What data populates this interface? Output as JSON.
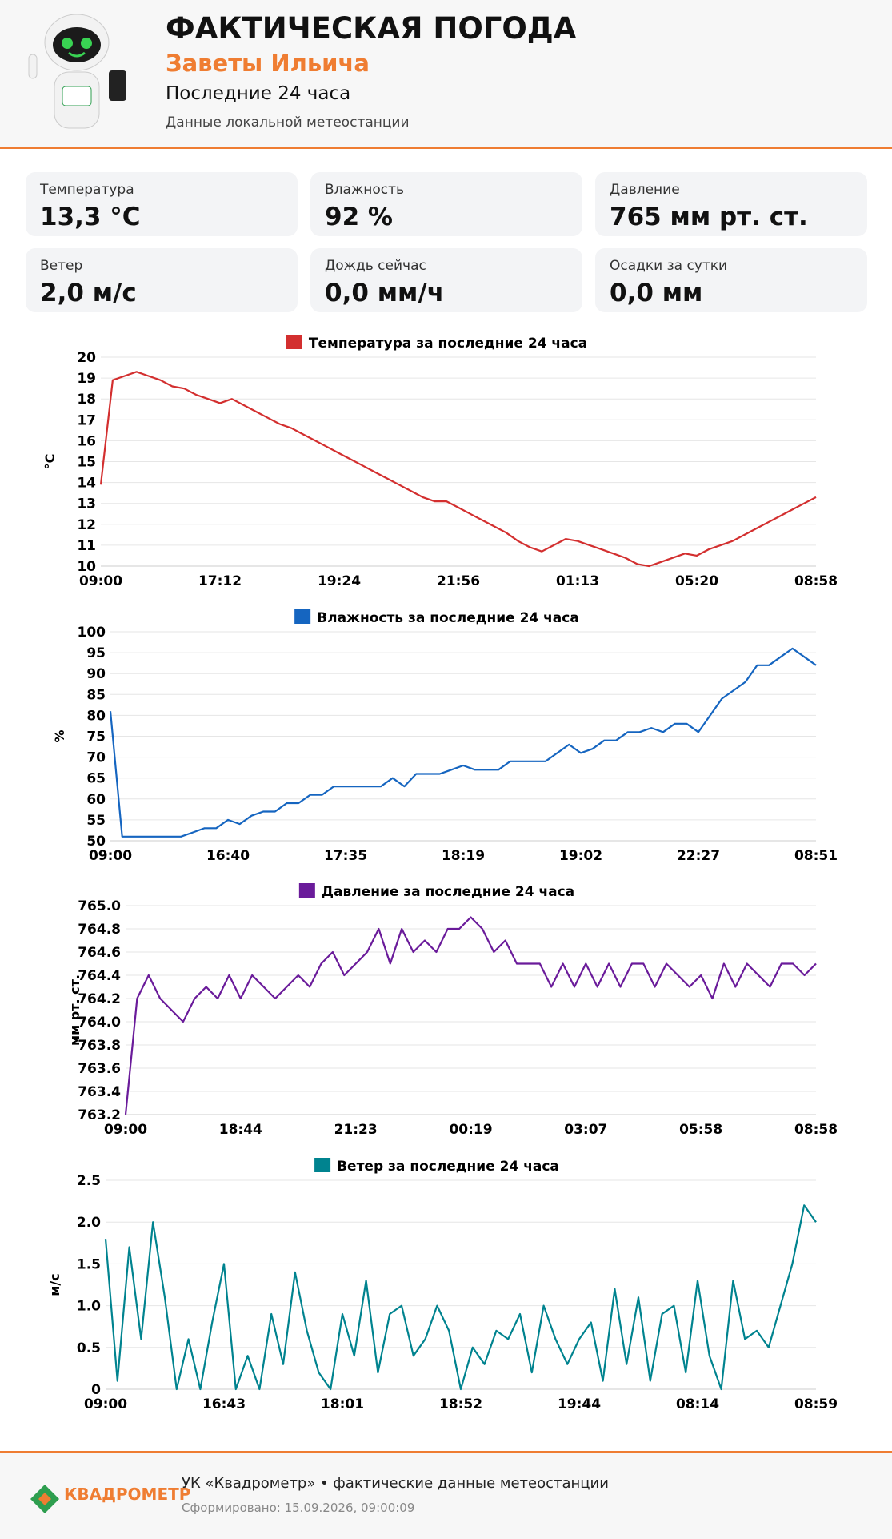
{
  "header": {
    "title": "ФАКТИЧЕСКАЯ ПОГОДА",
    "location": "Заветы Ильича",
    "period": "Последние 24 часа",
    "source": "Данные локальной метеостанции",
    "logo": "КВАДРОМЕТР"
  },
  "cards": [
    {
      "label": "Температура",
      "value": "13,3 °C"
    },
    {
      "label": "Влажность",
      "value": "92 %"
    },
    {
      "label": "Давление",
      "value": "765 мм рт. ст."
    },
    {
      "label": "Ветер",
      "value": "2,0 м/с"
    },
    {
      "label": "Дождь сейчас",
      "value": "0,0 мм/ч"
    },
    {
      "label": "Осадки за сутки",
      "value": "0,0 мм"
    }
  ],
  "chart_data": [
    {
      "type": "line",
      "ylabel": "°C",
      "grid": true,
      "ylim": [
        10,
        20
      ],
      "yticks": [
        10,
        11,
        12,
        13,
        14,
        15,
        16,
        17,
        18,
        19,
        20
      ],
      "categories": [
        "09:00",
        null,
        null,
        null,
        null,
        null,
        null,
        null,
        null,
        null,
        "17:12",
        null,
        null,
        null,
        null,
        null,
        null,
        null,
        null,
        null,
        "19:24",
        null,
        null,
        null,
        null,
        null,
        null,
        null,
        null,
        null,
        "21:56",
        null,
        null,
        null,
        null,
        null,
        null,
        null,
        null,
        null,
        "01:13",
        null,
        null,
        null,
        null,
        null,
        null,
        null,
        null,
        null,
        "05:20",
        null,
        null,
        null,
        null,
        null,
        null,
        null,
        null,
        null,
        "08:58"
      ],
      "series": [
        {
          "name": "Температура за последние 24 часа",
          "color": "#d32f2f",
          "values": [
            13.9,
            18.9,
            19.1,
            19.3,
            19.1,
            18.9,
            18.6,
            18.5,
            18.2,
            18.0,
            17.8,
            18.0,
            17.7,
            17.4,
            17.1,
            16.8,
            16.6,
            16.3,
            16.0,
            15.7,
            15.4,
            15.1,
            14.8,
            14.5,
            14.2,
            13.9,
            13.6,
            13.3,
            13.1,
            13.1,
            12.8,
            12.5,
            12.2,
            11.9,
            11.6,
            11.2,
            10.9,
            10.7,
            11.0,
            11.3,
            11.2,
            11.0,
            10.8,
            10.6,
            10.4,
            10.1,
            10.0,
            10.2,
            10.4,
            10.6,
            10.5,
            10.8,
            11.0,
            11.2,
            11.5,
            11.8,
            12.1,
            12.4,
            12.7,
            13.0,
            13.3
          ]
        }
      ]
    },
    {
      "type": "line",
      "ylabel": "%",
      "grid": true,
      "ylim": [
        50,
        100
      ],
      "yticks": [
        50,
        55,
        60,
        65,
        70,
        75,
        80,
        85,
        90,
        95,
        100
      ],
      "categories": [
        "09:00",
        null,
        null,
        null,
        null,
        null,
        null,
        null,
        null,
        null,
        "16:40",
        null,
        null,
        null,
        null,
        null,
        null,
        null,
        null,
        null,
        "17:35",
        null,
        null,
        null,
        null,
        null,
        null,
        null,
        null,
        null,
        "18:19",
        null,
        null,
        null,
        null,
        null,
        null,
        null,
        null,
        null,
        "19:02",
        null,
        null,
        null,
        null,
        null,
        null,
        null,
        null,
        null,
        "22:27",
        null,
        null,
        null,
        null,
        null,
        null,
        null,
        null,
        null,
        "08:51"
      ],
      "series": [
        {
          "name": "Влажность за последние 24 часа",
          "color": "#1565c0",
          "values": [
            81,
            51,
            51,
            51,
            51,
            51,
            51,
            52,
            53,
            53,
            55,
            54,
            56,
            57,
            57,
            59,
            59,
            61,
            61,
            63,
            63,
            63,
            63,
            63,
            65,
            63,
            66,
            66,
            66,
            67,
            68,
            67,
            67,
            67,
            69,
            69,
            69,
            69,
            71,
            73,
            71,
            72,
            74,
            74,
            76,
            76,
            77,
            76,
            78,
            78,
            76,
            80,
            84,
            86,
            88,
            92,
            92,
            94,
            96,
            94,
            92
          ]
        }
      ]
    },
    {
      "type": "line",
      "ylabel": "мм рт. ст.",
      "grid": true,
      "ylim": [
        763.2,
        765
      ],
      "yticks": [
        763.2,
        763.4,
        763.6,
        763.8,
        {
          "value": 764,
          "label": "764.0"
        },
        764.2,
        764.4,
        764.6,
        764.8,
        {
          "value": 765,
          "label": "765.0"
        }
      ],
      "categories": [
        "09:00",
        null,
        null,
        null,
        null,
        null,
        null,
        null,
        null,
        null,
        "18:44",
        null,
        null,
        null,
        null,
        null,
        null,
        null,
        null,
        null,
        "21:23",
        null,
        null,
        null,
        null,
        null,
        null,
        null,
        null,
        null,
        "00:19",
        null,
        null,
        null,
        null,
        null,
        null,
        null,
        null,
        null,
        "03:07",
        null,
        null,
        null,
        null,
        null,
        null,
        null,
        null,
        null,
        "05:58",
        null,
        null,
        null,
        null,
        null,
        null,
        null,
        null,
        null,
        "08:58"
      ],
      "series": [
        {
          "name": "Давление за последние 24 часа",
          "color": "#6a1b9a",
          "values": [
            763.2,
            764.2,
            764.4,
            764.2,
            764.1,
            764.0,
            764.2,
            764.3,
            764.2,
            764.4,
            764.2,
            764.4,
            764.3,
            764.2,
            764.3,
            764.4,
            764.3,
            764.5,
            764.6,
            764.4,
            764.5,
            764.6,
            764.8,
            764.5,
            764.8,
            764.6,
            764.7,
            764.6,
            764.8,
            764.8,
            764.9,
            764.8,
            764.6,
            764.7,
            764.5,
            764.5,
            764.5,
            764.3,
            764.5,
            764.3,
            764.5,
            764.3,
            764.5,
            764.3,
            764.5,
            764.5,
            764.3,
            764.5,
            764.4,
            764.3,
            764.4,
            764.2,
            764.5,
            764.3,
            764.5,
            764.4,
            764.3,
            764.5,
            764.5,
            764.4,
            764.5
          ]
        }
      ]
    },
    {
      "type": "line",
      "ylabel": "м/с",
      "grid": true,
      "ylim": [
        0,
        2.5
      ],
      "yticks": [
        0,
        0.5,
        {
          "value": 1,
          "label": "1.0"
        },
        1.5,
        {
          "value": 2,
          "label": "2.0"
        },
        2.5
      ],
      "categories": [
        "09:00",
        null,
        null,
        null,
        null,
        null,
        null,
        null,
        null,
        null,
        "16:43",
        null,
        null,
        null,
        null,
        null,
        null,
        null,
        null,
        null,
        "18:01",
        null,
        null,
        null,
        null,
        null,
        null,
        null,
        null,
        null,
        "18:52",
        null,
        null,
        null,
        null,
        null,
        null,
        null,
        null,
        null,
        "19:44",
        null,
        null,
        null,
        null,
        null,
        null,
        null,
        null,
        null,
        "08:14",
        null,
        null,
        null,
        null,
        null,
        null,
        null,
        null,
        null,
        "08:59"
      ],
      "series": [
        {
          "name": "Ветер за последние 24 часа",
          "color": "#00838f",
          "values": [
            1.8,
            0.1,
            1.7,
            0.6,
            2.0,
            1.1,
            0,
            0.6,
            0,
            0.8,
            1.5,
            0,
            0.4,
            0,
            0.9,
            0.3,
            1.4,
            0.7,
            0.2,
            0,
            0.9,
            0.4,
            1.3,
            0.2,
            0.9,
            1.0,
            0.4,
            0.6,
            1.0,
            0.7,
            0,
            0.5,
            0.3,
            0.7,
            0.6,
            0.9,
            0.2,
            1.0,
            0.6,
            0.3,
            0.6,
            0.8,
            0.1,
            1.2,
            0.3,
            1.1,
            0.1,
            0.9,
            1.0,
            0.2,
            1.3,
            0.4,
            0,
            1.3,
            0.6,
            0.7,
            0.5,
            1.0,
            1.5,
            2.2,
            2.0
          ]
        }
      ]
    }
  ],
  "footer": {
    "company": "УК «Квадрометр» • фактические данные метеостанции",
    "generated": "Сформировано: 15.09.2026, 09:00:09"
  }
}
